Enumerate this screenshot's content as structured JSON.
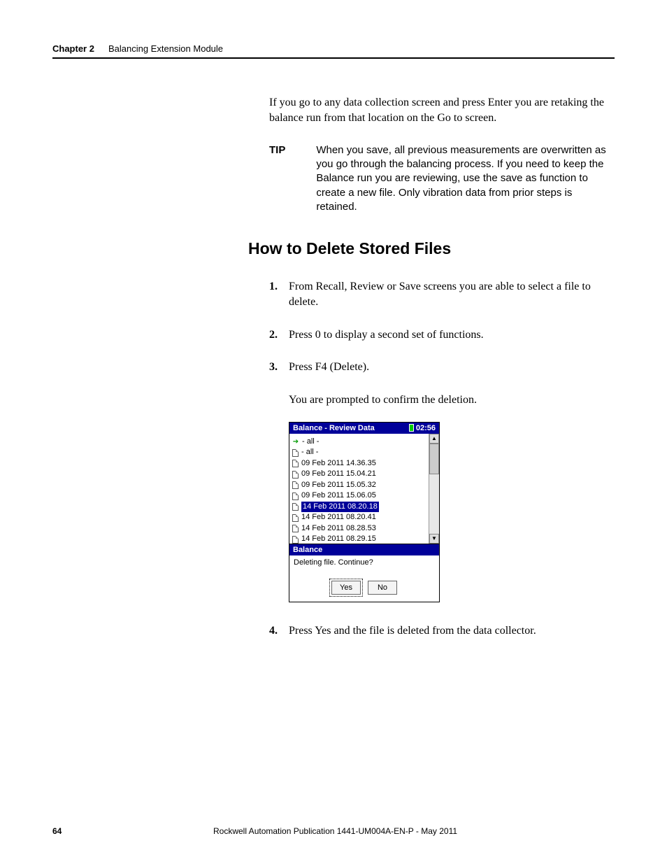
{
  "header": {
    "chapter_label": "Chapter 2",
    "chapter_title": "Balancing Extension Module"
  },
  "intro_para": "If you go to any data collection screen and press Enter you are retaking the balance run from that location on the Go to screen.",
  "tip": {
    "label": "TIP",
    "text": "When you save, all previous measurements are overwritten as you go through the balancing process. If you need to keep the Balance run you are reviewing, use the save as function to create a new file. Only vibration data from prior steps is retained."
  },
  "section_heading": "How to Delete Stored Files",
  "steps": [
    "From Recall, Review or Save screens you are able to select a file to delete.",
    "Press 0 to display a second set of functions.",
    "Press F4 (Delete).",
    "Press Yes and the file is deleted from the data collector."
  ],
  "step3_sub": "You are prompted to confirm the deletion.",
  "device": {
    "title": "Balance - Review Data",
    "time": "02:56",
    "files": [
      {
        "label": "- all -",
        "current": true
      },
      {
        "label": "- all -"
      },
      {
        "label": "09 Feb 2011 14.36.35"
      },
      {
        "label": "09 Feb 2011 15.04.21"
      },
      {
        "label": "09 Feb 2011 15.05.32"
      },
      {
        "label": "09 Feb 2011 15.06.05"
      },
      {
        "label": "14 Feb 2011 08.20.18",
        "selected": true
      },
      {
        "label": "14 Feb 2011 08.20.41"
      },
      {
        "label": "14 Feb 2011 08.28.53"
      },
      {
        "label": "14 Feb 2011 08.29.15"
      }
    ],
    "dialog": {
      "title": "Balance",
      "message": "Deleting file. Continue?",
      "yes": "Yes",
      "no": "No"
    }
  },
  "footer": {
    "page": "64",
    "publication": "Rockwell Automation Publication 1441-UM004A-EN-P - May 2011"
  },
  "nums": {
    "n1": "1.",
    "n2": "2.",
    "n3": "3.",
    "n4": "4."
  },
  "scroll": {
    "up": "▲",
    "down": "▼"
  }
}
